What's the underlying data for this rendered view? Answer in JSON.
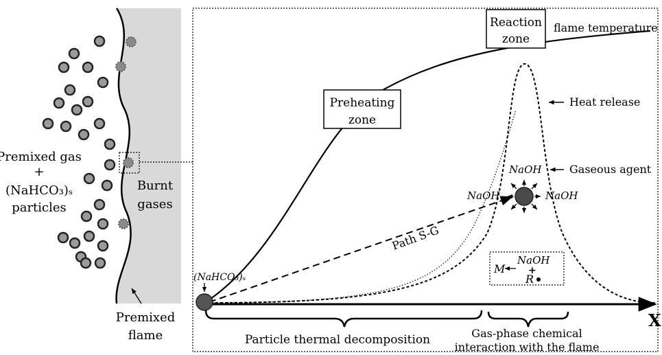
{
  "left_panel": {
    "premixed_gas": "Premixed gas",
    "plus": "+",
    "nahco3_particles": "(NaHCO₃)ₛ",
    "particles": "particles",
    "burnt": "Burnt",
    "gases": "gases",
    "premixed": "Premixed",
    "flame": "flame"
  },
  "main_panel": {
    "reaction_zone_line1": "Reaction",
    "reaction_zone_line2": "zone",
    "flame_temperature": "flame temperature",
    "preheating_line1": "Preheating",
    "preheating_line2": "zone",
    "heat_release": "Heat release",
    "gaseous_agent": "Gaseous agent",
    "naoh": "NaOH",
    "path_sg": "Path S-G",
    "particle_label": "(NaHCO₃)ₛ",
    "box_m": "M",
    "box_r": "R",
    "box_plus": "+",
    "x_axis": "X",
    "decomposition": "Particle thermal decomposition",
    "gas_phase_line1": "Gas-phase chemical",
    "gas_phase_line2": "interaction with the flame"
  },
  "colors": {
    "burnt_region": "#d9d9d9",
    "particle_fill": "#9a9a9a",
    "particle_stroke": "#222222",
    "dark_particle": "#4a4a4a",
    "line": "#000000"
  }
}
